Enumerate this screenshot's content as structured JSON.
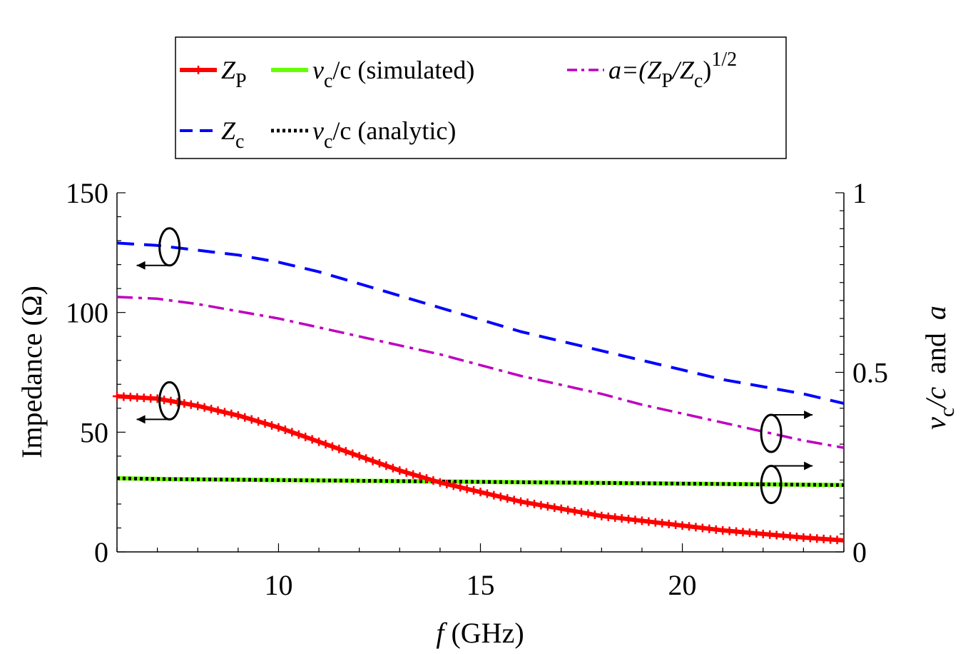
{
  "chart_data": {
    "type": "line",
    "xlabel": {
      "symbol": "f",
      "unit": " (GHz)"
    },
    "ylabel_left": "Impedance (Ω)",
    "ylabel_right": {
      "v": "v",
      "sub": "c",
      "rest": "/c",
      "and": "and",
      "a": "a"
    },
    "xlim": [
      6,
      24
    ],
    "ylim_left": [
      0,
      150
    ],
    "ylim_right": [
      0,
      1
    ],
    "x_ticks": [
      10,
      15,
      20
    ],
    "x_tick_labels": [
      "10",
      "15",
      "20"
    ],
    "y_left_ticks": [
      0,
      50,
      100,
      150
    ],
    "y_left_tick_labels": [
      "0",
      "50",
      "100",
      "150"
    ],
    "y_right_ticks": [
      0,
      0.5,
      1
    ],
    "y_right_tick_labels": [
      "0",
      "0.5",
      "1"
    ],
    "x": [
      6,
      7,
      8,
      9,
      10,
      11,
      12,
      13,
      14,
      15,
      16,
      17,
      18,
      19,
      20,
      21,
      22,
      23,
      24
    ],
    "series": [
      {
        "name": "Z_P",
        "axis": "left",
        "color": "#ff0000",
        "style": "solid-plus",
        "values": [
          65,
          64,
          61,
          57,
          52,
          46,
          40,
          34,
          29,
          25,
          21,
          18,
          15,
          13,
          11,
          9,
          7.5,
          6,
          4.8
        ]
      },
      {
        "name": "Z_c",
        "axis": "left",
        "color": "#0000ff",
        "style": "dashed",
        "values": [
          129,
          128,
          126,
          124,
          121,
          117,
          112,
          107,
          102,
          97,
          92,
          88,
          84,
          80,
          76,
          72,
          69,
          66,
          62
        ]
      },
      {
        "name": "v_c/c (simulated)",
        "axis": "right",
        "color": "#66ff00",
        "style": "solid",
        "values": [
          0.205,
          0.203,
          0.202,
          0.201,
          0.2,
          0.199,
          0.198,
          0.197,
          0.196,
          0.195,
          0.194,
          0.193,
          0.192,
          0.191,
          0.19,
          0.189,
          0.188,
          0.187,
          0.186
        ]
      },
      {
        "name": "v_c/c (analytic)",
        "axis": "right",
        "color": "#000000",
        "style": "dotted",
        "values": [
          0.205,
          0.203,
          0.202,
          0.201,
          0.2,
          0.199,
          0.198,
          0.197,
          0.196,
          0.195,
          0.194,
          0.193,
          0.192,
          0.191,
          0.19,
          0.189,
          0.188,
          0.187,
          0.186
        ]
      },
      {
        "name": "a=(Z_P/Z_c)^1/2",
        "axis": "right",
        "color": "#bf00bf",
        "style": "dashdot",
        "values": [
          0.71,
          0.705,
          0.69,
          0.67,
          0.65,
          0.625,
          0.6,
          0.575,
          0.55,
          0.52,
          0.49,
          0.465,
          0.44,
          0.41,
          0.385,
          0.36,
          0.335,
          0.31,
          0.29
        ]
      }
    ],
    "legend": {
      "placement": "top",
      "entries": [
        {
          "series": "Z_P",
          "main": "Z",
          "sub": "P",
          "rest": ""
        },
        {
          "series": "v_c/c (simulated)",
          "main": "v",
          "sub": "c",
          "rest": "/c (simulated)"
        },
        {
          "series": "a=(Z_P/Z_c)^1/2",
          "main": "a=(Z",
          "sub": "P",
          "rest": "/Z",
          "sub2": "c",
          "sup": "1/2"
        },
        {
          "series": "Z_c",
          "main": "Z",
          "sub": "c",
          "rest": ""
        },
        {
          "series": "v_c/c (analytic)",
          "main": "v",
          "sub": "c",
          "rest": "/c (analytic)"
        }
      ]
    },
    "annotations": [
      {
        "type": "axis-arrow",
        "direction": "left",
        "series": "Z_c"
      },
      {
        "type": "axis-arrow",
        "direction": "left",
        "series": "Z_P"
      },
      {
        "type": "axis-arrow",
        "direction": "right",
        "series": "a=(Z_P/Z_c)^1/2"
      },
      {
        "type": "axis-arrow",
        "direction": "right",
        "series": "v_c/c (simulated)"
      }
    ]
  }
}
